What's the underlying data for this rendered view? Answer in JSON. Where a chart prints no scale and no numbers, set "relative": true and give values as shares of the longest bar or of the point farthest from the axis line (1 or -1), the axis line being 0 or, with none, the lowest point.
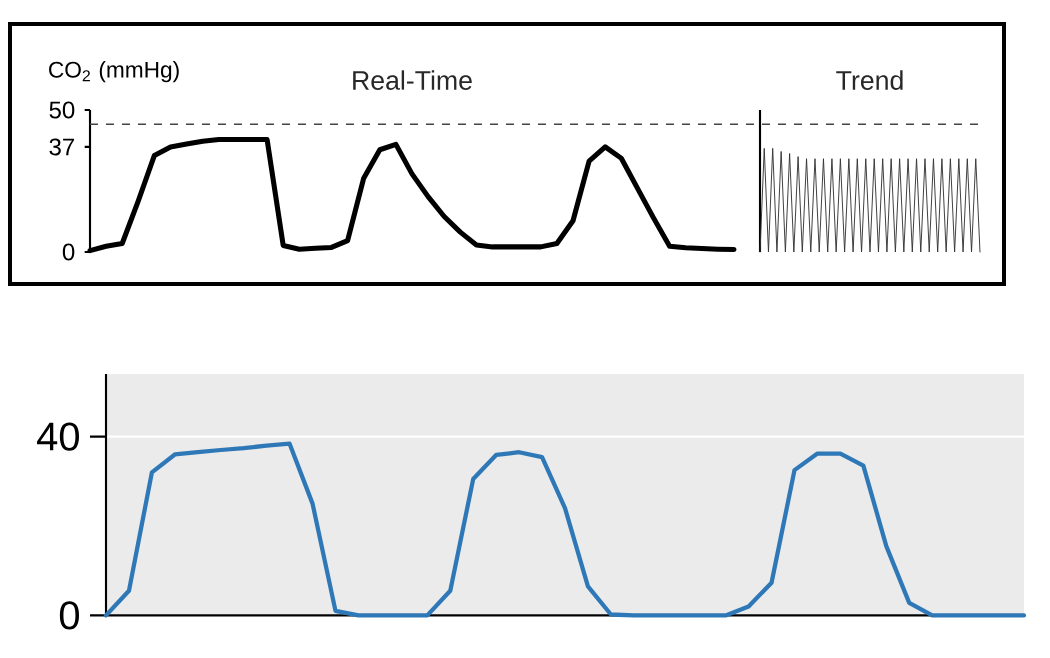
{
  "chart_data": [
    {
      "type": "line",
      "title": "Real-Time",
      "ylabel": "CO$_{2}$ (mmHg)",
      "color": "#000000",
      "ylim": [
        0,
        50
      ],
      "yticks": [
        0,
        37,
        50
      ],
      "tick_labels": "y",
      "line_style": "solid",
      "categories": [
        null,
        null,
        null,
        null,
        null,
        null,
        null,
        null,
        null,
        null,
        null,
        null,
        null,
        null,
        null,
        null,
        null,
        null,
        null,
        null,
        null,
        null,
        null,
        null,
        null,
        null,
        null,
        null,
        null,
        null,
        null,
        null,
        null,
        null,
        null,
        null,
        null,
        null,
        null,
        null,
        null
      ],
      "values": [
        0.5,
        2,
        3,
        18,
        34,
        37,
        38,
        39,
        39.6,
        39.6,
        39.6,
        39.6,
        2.3,
        1,
        1.3,
        1.6,
        4,
        26,
        36,
        37.9,
        27.5,
        19.5,
        12.5,
        7,
        2.5,
        1.8,
        1.8,
        1.8,
        1.8,
        3,
        11,
        32,
        37,
        33,
        22.5,
        12,
        2,
        1.5,
        1.2,
        1,
        0.9
      ],
      "ref_lines": [
        {
          "axis": "y",
          "value": 45,
          "line_style": "dashed",
          "color": "#444444"
        }
      ]
    },
    {
      "type": "line",
      "title": "Trend",
      "color": "#333333",
      "relative": true,
      "line_style": "solid",
      "categories": [
        null,
        null,
        null,
        null,
        null,
        null,
        null,
        null,
        null,
        null,
        null,
        null,
        null,
        null,
        null,
        null,
        null,
        null,
        null,
        null,
        null,
        null,
        null,
        null,
        null,
        null,
        null,
        null,
        null,
        null,
        null,
        null,
        null,
        null,
        null,
        null,
        null,
        null,
        null,
        null,
        null,
        null,
        null,
        null,
        null,
        null,
        null,
        null,
        null,
        null,
        null,
        null,
        null
      ],
      "values": [
        0,
        1,
        0,
        1,
        0,
        0.97,
        0,
        0.95,
        0,
        0.92,
        0,
        0.9,
        0,
        0.9,
        0,
        0.9,
        0,
        0.9,
        0,
        0.9,
        0,
        0.9,
        0,
        0.9,
        0,
        0.9,
        0,
        0.9,
        0,
        0.9,
        0,
        0.9,
        0,
        0.9,
        0,
        0.9,
        0,
        0.9,
        0,
        0.9,
        0,
        0.9,
        0,
        0.9,
        0,
        0.9,
        0,
        0.9,
        0,
        0.9,
        0,
        0.9,
        0
      ]
    },
    {
      "type": "line",
      "color": "#2f78b7",
      "ylim": [
        0,
        54
      ],
      "yticks": [
        0,
        40
      ],
      "tick_labels": "y",
      "grid": "y",
      "line_style": "solid",
      "categories": [
        null,
        null,
        null,
        null,
        null,
        null,
        null,
        null,
        null,
        null,
        null,
        null,
        null,
        null,
        null,
        null,
        null,
        null,
        null,
        null,
        null,
        null,
        null,
        null,
        null,
        null,
        null,
        null,
        null,
        null,
        null,
        null,
        null,
        null,
        null,
        null,
        null,
        null,
        null,
        null,
        null
      ],
      "values": [
        0,
        5.5,
        32,
        36,
        36.5,
        37,
        37.4,
        38,
        38.4,
        25,
        1,
        0,
        0,
        0,
        0,
        5.5,
        30.5,
        35.9,
        36.5,
        35.4,
        24,
        6.5,
        0.2,
        0,
        0,
        0,
        0,
        0,
        2,
        7.3,
        32.5,
        36.2,
        36.2,
        33.5,
        15.5,
        2.8,
        0,
        0,
        0,
        0,
        0
      ]
    }
  ]
}
